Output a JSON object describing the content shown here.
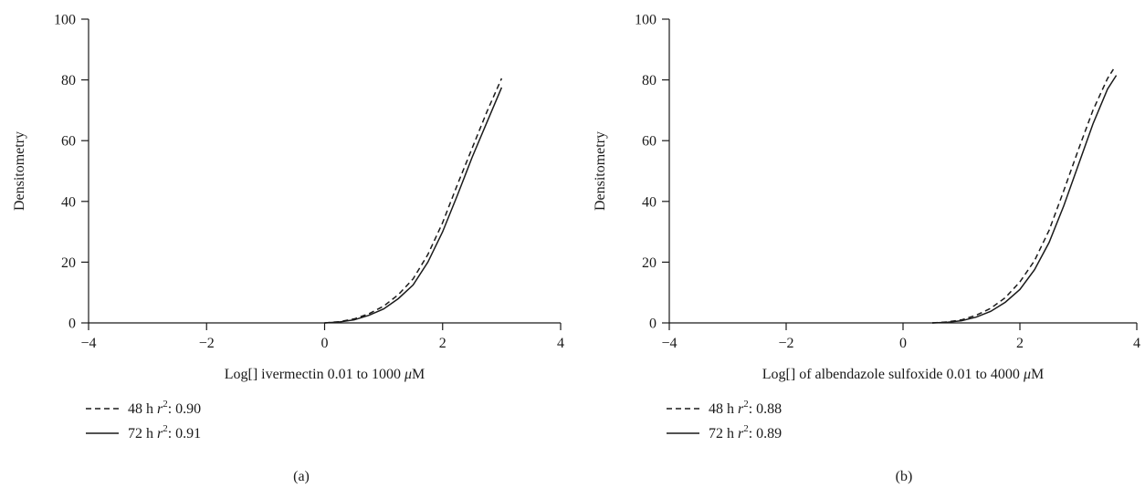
{
  "chart_data": [
    {
      "type": "line",
      "panel_label": "(a)",
      "xlabel_main": "Log[] ivermectin 0.01 to 1000 ",
      "xlabel_unit": "μM",
      "ylabel": "Densitometry",
      "xlim": [
        -4,
        4
      ],
      "ylim": [
        0,
        100
      ],
      "xticks": [
        -4,
        -2,
        0,
        2,
        4
      ],
      "yticks": [
        0,
        20,
        40,
        60,
        80,
        100
      ],
      "grid": false,
      "legend_position": "below-left",
      "series": [
        {
          "style": "dashed",
          "legend_prefix": "48 h ",
          "legend_var": "r",
          "legend_exp": "2",
          "legend_suffix": ": 0.90",
          "x": [
            0,
            0.25,
            0.5,
            0.75,
            1.0,
            1.25,
            1.5,
            1.75,
            2.0,
            2.25,
            2.5,
            2.75,
            3.0
          ],
          "y": [
            0,
            0.4,
            1.3,
            3.0,
            5.5,
            9.3,
            14.5,
            22.5,
            33.0,
            45.5,
            57.5,
            69.5,
            80.5
          ]
        },
        {
          "style": "solid",
          "legend_prefix": "72 h ",
          "legend_var": "r",
          "legend_exp": "2",
          "legend_suffix": ": 0.91",
          "x": [
            0,
            0.25,
            0.5,
            0.75,
            1.0,
            1.25,
            1.5,
            1.75,
            2.0,
            2.25,
            2.5,
            2.75,
            3.0
          ],
          "y": [
            0,
            0.3,
            1.0,
            2.5,
            4.6,
            8.0,
            12.5,
            20.0,
            30.0,
            42.0,
            54.5,
            66.0,
            77.5
          ]
        }
      ]
    },
    {
      "type": "line",
      "panel_label": "(b)",
      "xlabel_main": "Log[] of albendazole sulfoxide 0.01 to 4000 ",
      "xlabel_unit": "μM",
      "ylabel": "Densitometry",
      "xlim": [
        -4,
        4
      ],
      "ylim": [
        0,
        100
      ],
      "xticks": [
        -4,
        -2,
        0,
        2,
        4
      ],
      "yticks": [
        0,
        20,
        40,
        60,
        80,
        100
      ],
      "grid": false,
      "legend_position": "below-left",
      "series": [
        {
          "style": "dashed",
          "legend_prefix": "48 h ",
          "legend_var": "r",
          "legend_exp": "2",
          "legend_suffix": ": 0.88",
          "x": [
            0.5,
            0.75,
            1.0,
            1.25,
            1.5,
            1.75,
            2.0,
            2.25,
            2.5,
            2.75,
            3.0,
            3.25,
            3.5,
            3.6
          ],
          "y": [
            0,
            0.3,
            1.0,
            2.5,
            4.8,
            8.3,
            13.5,
            20.5,
            30.5,
            43.5,
            57.0,
            70.0,
            80.5,
            83.5
          ]
        },
        {
          "style": "solid",
          "legend_prefix": "72 h ",
          "legend_var": "r",
          "legend_exp": "2",
          "legend_suffix": ": 0.89",
          "x": [
            0.5,
            0.75,
            1.0,
            1.25,
            1.5,
            1.75,
            2.0,
            2.25,
            2.5,
            2.75,
            3.0,
            3.25,
            3.5,
            3.65
          ],
          "y": [
            0,
            0.2,
            0.7,
            1.9,
            3.8,
            6.8,
            11.0,
            17.5,
            26.5,
            38.5,
            52.0,
            65.5,
            77.0,
            81.5
          ]
        }
      ]
    }
  ]
}
